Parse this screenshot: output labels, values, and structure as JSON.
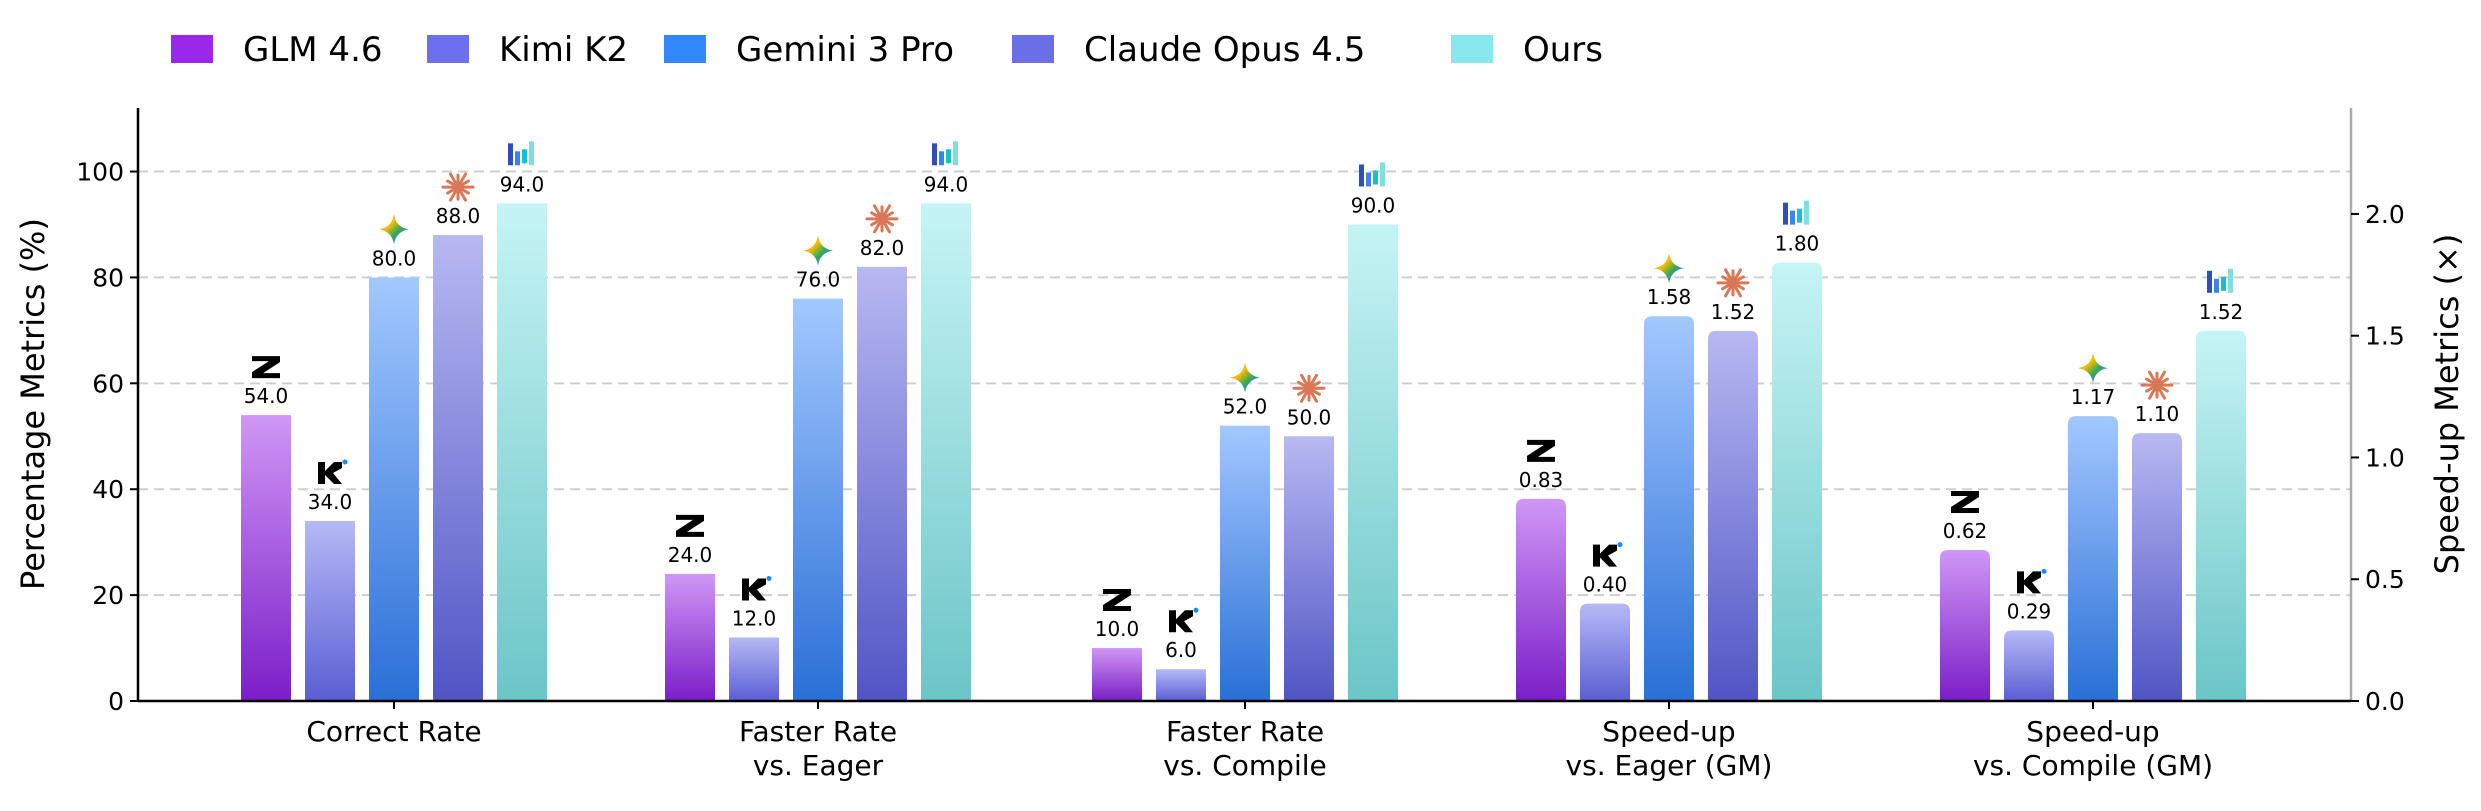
{
  "chart_data": {
    "type": "bar",
    "categories": [
      [
        "Correct Rate"
      ],
      [
        "Faster Rate",
        "vs. Eager"
      ],
      [
        "Faster Rate",
        "vs. Compile"
      ],
      [
        "Speed-up",
        "vs. Eager (GM)"
      ],
      [
        "Speed-up",
        "vs. Compile (GM)"
      ]
    ],
    "category_axis": [
      "left",
      "left",
      "left",
      "right",
      "right"
    ],
    "series": [
      {
        "name": "GLM 4.6",
        "color": "#9b27ec",
        "grad": [
          "#cf97f5",
          "#7b1ec8"
        ],
        "icon": "zhipu-z-logo-icon",
        "values": [
          54.0,
          24.0,
          10.0,
          0.83,
          0.62
        ],
        "labels": [
          "54.0",
          "24.0",
          "10.0",
          "0.83",
          "0.62"
        ]
      },
      {
        "name": "Kimi K2",
        "color": "#6b6ff0",
        "grad": [
          "#b6b9f6",
          "#5a5ed2"
        ],
        "icon": "kimi-k-logo-icon",
        "values": [
          34.0,
          12.0,
          6.0,
          0.4,
          0.29
        ],
        "labels": [
          "34.0",
          "12.0",
          "6.0",
          "0.40",
          "0.29"
        ]
      },
      {
        "name": "Gemini 3 Pro",
        "color": "#3388ff",
        "grad": [
          "#a3c8ff",
          "#2a6fd6"
        ],
        "icon": "gemini-sparkle-icon",
        "values": [
          80.0,
          76.0,
          52.0,
          1.58,
          1.17
        ],
        "labels": [
          "80.0",
          "76.0",
          "52.0",
          "1.58",
          "1.17"
        ]
      },
      {
        "name": "Claude Opus 4.5",
        "color": "#6a6fe8",
        "grad": [
          "#b8b8f2",
          "#5055c4"
        ],
        "icon": "claude-starburst-icon",
        "values": [
          88.0,
          82.0,
          50.0,
          1.52,
          1.1
        ],
        "labels": [
          "88.0",
          "82.0",
          "50.0",
          "1.52",
          "1.10"
        ]
      },
      {
        "name": "Ours",
        "color": "#88e8ee",
        "grad": [
          "#c6f4f5",
          "#6cc5c7"
        ],
        "icon": "ours-bars-logo-icon",
        "values": [
          94.0,
          94.0,
          90.0,
          1.8,
          1.52
        ],
        "labels": [
          "94.0",
          "94.0",
          "90.0",
          "1.80",
          "1.52"
        ]
      }
    ],
    "ylabel_left": "Percentage Metrics (%)",
    "ylabel_right": "Speed-up Metrics (×)",
    "ylim_left": [
      0,
      112
    ],
    "ylim_right": [
      0,
      2.435
    ],
    "yticks_left": [
      "0",
      "20",
      "40",
      "60",
      "80",
      "100"
    ],
    "yticks_right": [
      "0.0",
      "0.5",
      "1.0",
      "1.5",
      "2.0"
    ],
    "grid": "horizontal dashed",
    "legend_placement": "top"
  }
}
